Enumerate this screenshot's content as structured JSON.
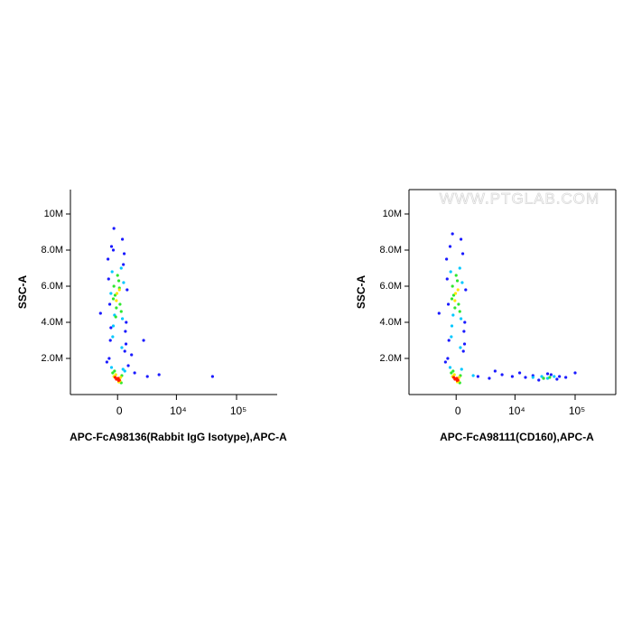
{
  "chart_data": [
    {
      "type": "scatter",
      "xlabel": "APC-FcA98136(Rabbit IgG Isotype),APC-A",
      "ylabel": "SSC-A",
      "xscale": "biexponential",
      "frame": false,
      "xlim": [
        -6300,
        470000
      ],
      "xticks": [
        0,
        {
          "value": 10000,
          "label": "10⁴"
        },
        {
          "value": 100000,
          "label": "10⁵"
        }
      ],
      "ylim": [
        0,
        11350000
      ],
      "yticks": [
        {
          "value": 2000000,
          "label": "2.0M"
        },
        {
          "value": 4000000,
          "label": "4.0M"
        },
        {
          "value": 6000000,
          "label": "6.0M"
        },
        {
          "value": 8000000,
          "label": "8.0M"
        },
        {
          "value": 10000000,
          "label": "10M"
        }
      ],
      "series": [
        {
          "color": "#1a1aff",
          "x": [
            -700,
            600,
            -600,
            700,
            -800,
            550,
            -500,
            650,
            -650,
            800,
            1200,
            2500,
            -900,
            400,
            -300,
            1500,
            3000,
            5000,
            40000,
            -1500,
            -750,
            720,
            -550,
            480,
            900,
            -350
          ],
          "values": [
            2000000,
            2400000,
            3000000,
            2800000,
            7500000,
            7800000,
            8200000,
            3500000,
            5000000,
            5800000,
            2200000,
            3000000,
            1800000,
            8600000,
            9200000,
            1200000,
            1000000,
            1100000,
            1000000,
            4500000,
            6400000,
            4000000,
            3700000,
            7200000,
            1600000,
            8000000
          ]
        },
        {
          "color": "#00c8ff",
          "x": [
            -500,
            450,
            -350,
            400,
            -450,
            300,
            -250,
            500,
            -400,
            350,
            -550,
            600
          ],
          "values": [
            1500000,
            1400000,
            3800000,
            4200000,
            6800000,
            7000000,
            4400000,
            6200000,
            3200000,
            2600000,
            5600000,
            1300000
          ]
        },
        {
          "color": "#2ee82e",
          "x": [
            -400,
            300,
            -250,
            350,
            -100,
            200,
            -300,
            100,
            -200,
            300,
            0,
            -350,
            150,
            -150
          ],
          "values": [
            1200000,
            650000,
            1300000,
            1050000,
            4800000,
            5000000,
            6000000,
            6300000,
            5500000,
            4600000,
            6600000,
            5300000,
            5900000,
            4300000
          ]
        },
        {
          "color": "#ffe600",
          "x": [
            -300,
            200,
            -150,
            100,
            250,
            -50,
            -100,
            150
          ],
          "values": [
            1000000,
            750000,
            1100000,
            700000,
            950000,
            5600000,
            5200000,
            5800000
          ]
        },
        {
          "color": "#ff1a00",
          "x": [
            -100,
            50,
            150,
            -200,
            0,
            80
          ],
          "values": [
            850000,
            900000,
            800000,
            950000,
            880000,
            780000
          ]
        }
      ]
    },
    {
      "type": "scatter",
      "xlabel": "APC-FcA98111(CD160),APC-A",
      "ylabel": "SSC-A",
      "annotation": "WWW.PTGLAB.COM",
      "xscale": "biexponential",
      "frame": true,
      "xlim": [
        -6300,
        470000
      ],
      "xticks": [
        0,
        {
          "value": 10000,
          "label": "10⁴"
        },
        {
          "value": 100000,
          "label": "10⁵"
        }
      ],
      "ylim": [
        0,
        11350000
      ],
      "yticks": [
        {
          "value": 2000000,
          "label": "2.0M"
        },
        {
          "value": 4000000,
          "label": "4.0M"
        },
        {
          "value": 6000000,
          "label": "6.0M"
        },
        {
          "value": 8000000,
          "label": "8.0M"
        },
        {
          "value": 10000000,
          "label": "10M"
        }
      ],
      "series": [
        {
          "color": "#1a1aff",
          "x": [
            -700,
            600,
            -600,
            700,
            -800,
            550,
            -500,
            650,
            -650,
            800,
            -900,
            400,
            -300,
            -1500,
            -750,
            720,
            2000,
            3500,
            6000,
            9000,
            15000,
            20000,
            30000,
            40000,
            55000,
            70000,
            12000,
            25000,
            35000,
            50000,
            4500,
            100000
          ],
          "values": [
            2000000,
            2400000,
            3000000,
            2800000,
            7500000,
            7800000,
            8200000,
            3500000,
            5000000,
            5800000,
            1800000,
            8600000,
            8900000,
            4500000,
            6400000,
            4000000,
            1000000,
            900000,
            1100000,
            1000000,
            950000,
            1050000,
            900000,
            1100000,
            1000000,
            950000,
            1200000,
            800000,
            1150000,
            850000,
            1300000,
            1200000
          ]
        },
        {
          "color": "#00c8ff",
          "x": [
            -500,
            450,
            -350,
            400,
            -450,
            300,
            -250,
            500,
            -400,
            350,
            20000,
            28000,
            35000,
            45000,
            1500
          ],
          "values": [
            1500000,
            1400000,
            3800000,
            4200000,
            6800000,
            7000000,
            4400000,
            6200000,
            3200000,
            2600000,
            950000,
            1000000,
            900000,
            1000000,
            1050000
          ]
        },
        {
          "color": "#2ee82e",
          "x": [
            -400,
            300,
            -250,
            350,
            -100,
            200,
            -300,
            100,
            -200,
            300,
            0,
            -350,
            30000,
            38000
          ],
          "values": [
            1200000,
            650000,
            1300000,
            1050000,
            4800000,
            5000000,
            6000000,
            6300000,
            5500000,
            4600000,
            6600000,
            5300000,
            900000,
            950000
          ]
        },
        {
          "color": "#ffe600",
          "x": [
            -300,
            200,
            -150,
            100,
            250,
            -50,
            -100,
            150
          ],
          "values": [
            1000000,
            750000,
            1100000,
            700000,
            950000,
            5600000,
            5200000,
            5800000
          ]
        },
        {
          "color": "#ff1a00",
          "x": [
            -100,
            50,
            150,
            -200,
            0,
            80
          ],
          "values": [
            850000,
            900000,
            800000,
            950000,
            880000,
            780000
          ]
        }
      ]
    }
  ]
}
